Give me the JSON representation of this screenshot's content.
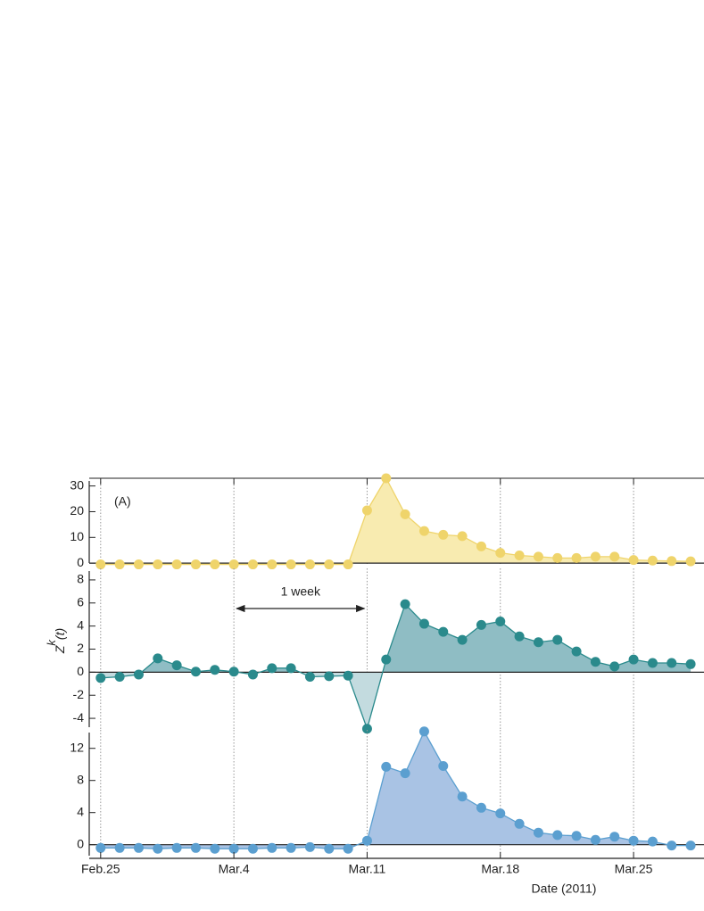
{
  "chart_data": [
    {
      "type": "area",
      "panel_label": "(A)",
      "x": [
        56,
        57,
        58,
        59,
        60,
        61,
        62,
        63,
        64,
        65,
        66,
        67,
        68,
        69,
        70,
        71,
        72,
        73,
        74,
        75,
        76,
        77,
        78,
        79,
        80,
        81,
        82,
        83,
        84,
        85,
        86,
        87
      ],
      "series": [
        {
          "color": "#efd46b",
          "fill_color": "#f8ebb0",
          "values": [
            -0.5,
            -0.5,
            -0.5,
            -0.5,
            -0.5,
            -0.5,
            -0.5,
            -0.5,
            -0.5,
            -0.5,
            -0.5,
            -0.5,
            -0.5,
            -0.5,
            20.5,
            33,
            19,
            12.5,
            11,
            10.5,
            6.5,
            4,
            3,
            2.5,
            2,
            2,
            2.5,
            2.5,
            1.2,
            1,
            0.8,
            0.7
          ]
        }
      ],
      "ylim": [
        -1,
        33
      ],
      "yticks": [
        0,
        10,
        20,
        30
      ]
    },
    {
      "type": "area",
      "annotation": "1 week",
      "ylabel": "Z",
      "ylabel_superscript": "k",
      "ylabel_suffix": "(t)",
      "x": [
        56,
        57,
        58,
        59,
        60,
        61,
        62,
        63,
        64,
        65,
        66,
        67,
        68,
        69,
        70,
        71,
        72,
        73,
        74,
        75,
        76,
        77,
        78,
        79,
        80,
        81,
        82,
        83,
        84,
        85,
        86,
        87
      ],
      "series": [
        {
          "color": "#2a8a8c",
          "fill_color": "#8fbdc4",
          "negative_fill_color": "#c3dbdf",
          "values": [
            -0.5,
            -0.4,
            -0.2,
            1.2,
            0.6,
            0.05,
            0.2,
            0.05,
            -0.2,
            0.35,
            0.35,
            -0.4,
            -0.35,
            -0.3,
            -4.9,
            1.1,
            5.9,
            4.2,
            3.5,
            2.8,
            4.1,
            4.4,
            3.1,
            2.6,
            2.8,
            1.8,
            0.9,
            0.5,
            1.1,
            0.8,
            0.8,
            0.7
          ]
        }
      ],
      "ylim": [
        -5,
        9
      ],
      "yticks": [
        -4,
        -2,
        0,
        2,
        4,
        6,
        8
      ]
    },
    {
      "type": "area",
      "xlabel": "Date (2011)",
      "x": [
        56,
        57,
        58,
        59,
        60,
        61,
        62,
        63,
        64,
        65,
        66,
        67,
        68,
        69,
        70,
        71,
        72,
        73,
        74,
        75,
        76,
        77,
        78,
        79,
        80,
        81,
        82,
        83,
        84,
        85,
        86,
        87
      ],
      "series": [
        {
          "color": "#5b9fd0",
          "fill_color": "#a9c3e4",
          "values": [
            -0.4,
            -0.4,
            -0.4,
            -0.5,
            -0.4,
            -0.4,
            -0.5,
            -0.5,
            -0.5,
            -0.4,
            -0.4,
            -0.3,
            -0.5,
            -0.5,
            0.5,
            9.7,
            8.9,
            14.1,
            9.8,
            6,
            4.6,
            3.9,
            2.6,
            1.5,
            1.2,
            1.1,
            0.6,
            1,
            0.5,
            0.4,
            -0.1,
            -0.1
          ]
        }
      ],
      "ylim": [
        -1.7,
        14.3
      ],
      "yticks": [
        0,
        4,
        8,
        12
      ],
      "xlim": [
        55.4,
        87.7
      ],
      "xticks": [
        {
          "value": 56,
          "label": "Feb.25"
        },
        {
          "value": 63,
          "label": "Mar.4"
        },
        {
          "value": 70,
          "label": "Mar.11"
        },
        {
          "value": 77,
          "label": "Mar.18"
        },
        {
          "value": 84,
          "label": "Mar.25"
        }
      ]
    }
  ]
}
